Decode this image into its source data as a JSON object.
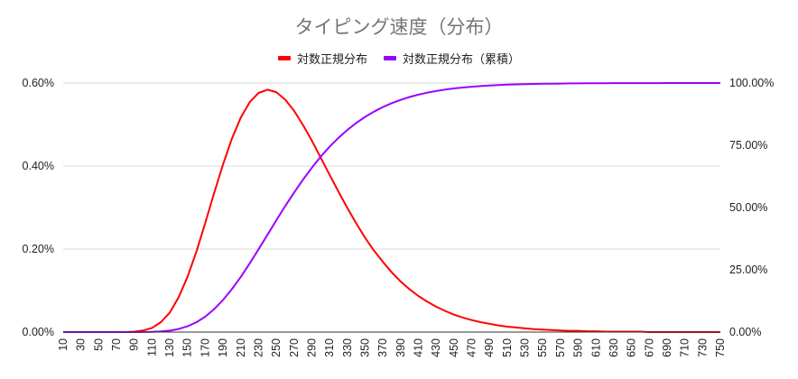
{
  "chart_data": {
    "type": "line",
    "title": "タイピング速度（分布）",
    "xlabel": "",
    "ylabel_left": "",
    "ylabel_right": "",
    "legend_position": "top",
    "grid": true,
    "x_range": [
      10,
      750
    ],
    "x_tick_labels": [
      "10",
      "30",
      "50",
      "70",
      "90",
      "110",
      "130",
      "150",
      "170",
      "190",
      "210",
      "230",
      "250",
      "270",
      "290",
      "310",
      "330",
      "350",
      "370",
      "390",
      "410",
      "430",
      "450",
      "470",
      "490",
      "510",
      "530",
      "550",
      "570",
      "590",
      "610",
      "630",
      "650",
      "670",
      "690",
      "710",
      "730",
      "750"
    ],
    "y_left": {
      "range": [
        0,
        0.6
      ],
      "unit": "%",
      "tick_labels": [
        "0.00%",
        "0.20%",
        "0.40%",
        "0.60%"
      ]
    },
    "y_right": {
      "range": [
        0,
        100
      ],
      "unit": "%",
      "tick_labels": [
        "0.00%",
        "25.00%",
        "50.00%",
        "75.00%",
        "100.00%"
      ]
    },
    "x": [
      10,
      20,
      30,
      40,
      50,
      60,
      70,
      80,
      90,
      100,
      110,
      120,
      130,
      140,
      150,
      160,
      170,
      180,
      190,
      200,
      210,
      220,
      230,
      240,
      250,
      260,
      270,
      280,
      290,
      300,
      310,
      320,
      330,
      340,
      350,
      360,
      370,
      380,
      390,
      400,
      410,
      420,
      430,
      440,
      450,
      460,
      470,
      480,
      490,
      500,
      510,
      520,
      530,
      540,
      550,
      560,
      570,
      580,
      590,
      600,
      610,
      620,
      630,
      640,
      650,
      660,
      670,
      680,
      690,
      700,
      710,
      720,
      730,
      740,
      750
    ],
    "series": [
      {
        "name": "対数正規分布",
        "axis": "left",
        "color": "#ff0000",
        "values": [
          0,
          0,
          0,
          0,
          0,
          0,
          0,
          0,
          0.001,
          0.004,
          0.01,
          0.024,
          0.047,
          0.084,
          0.133,
          0.194,
          0.263,
          0.335,
          0.404,
          0.466,
          0.517,
          0.554,
          0.576,
          0.584,
          0.578,
          0.56,
          0.533,
          0.499,
          0.461,
          0.42,
          0.379,
          0.338,
          0.299,
          0.262,
          0.227,
          0.196,
          0.169,
          0.144,
          0.122,
          0.103,
          0.087,
          0.073,
          0.061,
          0.051,
          0.042,
          0.035,
          0.029,
          0.024,
          0.02,
          0.016,
          0.013,
          0.011,
          0.009,
          0.007,
          0.006,
          0.005,
          0.004,
          0.003,
          0.003,
          0.002,
          0.002,
          0.001,
          0.001,
          0.001,
          0.001,
          0.001,
          0,
          0,
          0,
          0,
          0,
          0,
          0,
          0,
          0
        ]
      },
      {
        "name": "対数正規分布（累積）",
        "axis": "right",
        "color": "#9900ff",
        "values": [
          0,
          0,
          0,
          0,
          0,
          0,
          0,
          0,
          0.006,
          0.026,
          0.09,
          0.25,
          0.59,
          1.24,
          2.31,
          3.94,
          6.21,
          9.21,
          12.9,
          17.26,
          22.18,
          27.57,
          33.24,
          39.05,
          44.88,
          50.57,
          56.03,
          61.21,
          66.01,
          70.42,
          74.41,
          77.99,
          81.17,
          83.96,
          86.41,
          88.53,
          90.35,
          91.91,
          93.24,
          94.37,
          95.32,
          96.12,
          96.79,
          97.35,
          97.81,
          98.2,
          98.52,
          98.78,
          99.0,
          99.18,
          99.33,
          99.45,
          99.55,
          99.63,
          99.7,
          99.76,
          99.8,
          99.84,
          99.87,
          99.9,
          99.92,
          99.93,
          99.95,
          99.96,
          99.97,
          99.97,
          99.98,
          99.98,
          99.99,
          99.99,
          99.99,
          99.99,
          100,
          100,
          100
        ]
      }
    ]
  }
}
